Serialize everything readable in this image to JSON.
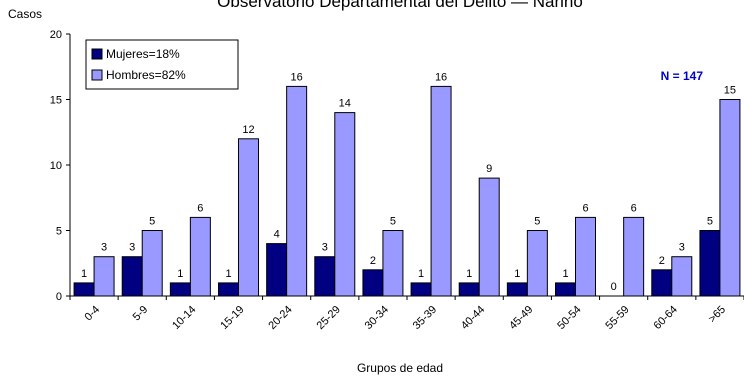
{
  "chart_data": {
    "type": "bar",
    "title": "Observatorio Departamental del Delito — Nariño",
    "ylabel": "Casos",
    "xlabel": "Grupos de edad",
    "ylim": [
      0,
      20
    ],
    "yticks": [
      0,
      5,
      10,
      15,
      20
    ],
    "categories": [
      "0-4",
      "5-9",
      "10-14",
      "15-19",
      "20-24",
      "25-29",
      "30-34",
      "35-39",
      "40-44",
      "45-49",
      "50-54",
      "55-59",
      "60-64",
      ">65"
    ],
    "series": [
      {
        "name": "Mujeres=18%",
        "color": "#000080",
        "values": [
          1,
          3,
          1,
          1,
          4,
          3,
          2,
          1,
          1,
          1,
          1,
          0,
          2,
          5
        ]
      },
      {
        "name": "Hombres=82%",
        "color": "#9999FF",
        "values": [
          3,
          5,
          6,
          12,
          16,
          14,
          5,
          16,
          9,
          5,
          6,
          6,
          3,
          15
        ]
      }
    ],
    "annotation": {
      "text": "N = 147",
      "color": "#0000CC"
    },
    "legend_position": "top-left",
    "grid": false
  }
}
